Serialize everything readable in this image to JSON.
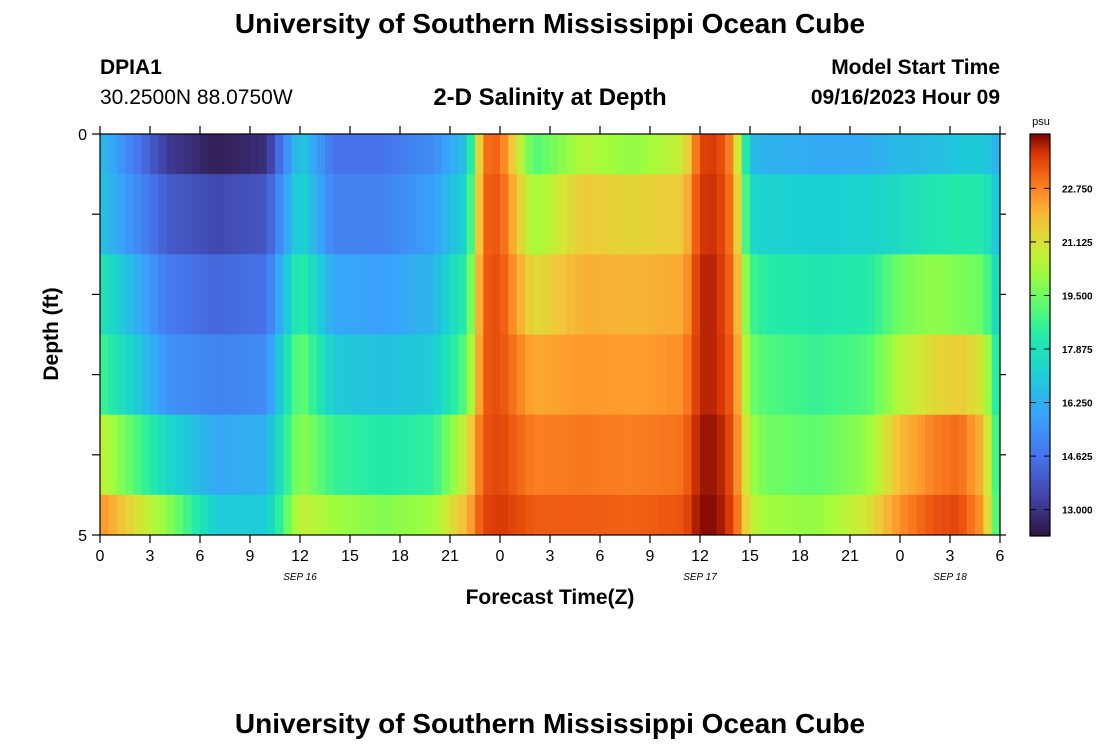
{
  "page": {
    "title": "University of Southern Mississippi Ocean Cube",
    "station": "DPIA1",
    "coords": "30.2500N  88.0750W",
    "plot_title": "2-D Salinity at Depth",
    "model_start_label": "Model Start Time",
    "model_start_value": "09/16/2023 Hour 09",
    "footer_title": "University of Southern Mississippi Ocean Cube"
  },
  "chart_data": {
    "type": "heatmap",
    "title": "2-D Salinity at Depth",
    "xlabel": "Forecast Time(Z)",
    "ylabel": "Depth (ft)",
    "x_tick_labels": [
      "0",
      "3",
      "6",
      "9",
      "12",
      "15",
      "18",
      "21",
      "0",
      "3",
      "6",
      "9",
      "12",
      "15",
      "18",
      "21",
      "0",
      "3",
      "6"
    ],
    "y_tick_labels": [
      "0",
      "5"
    ],
    "ylim": [
      0,
      5
    ],
    "date_labels": [
      {
        "text": "SEP 16",
        "tick_index": 4
      },
      {
        "text": "SEP 17",
        "tick_index": 12
      },
      {
        "text": "SEP 18",
        "tick_index": 17
      }
    ],
    "colorbar": {
      "unit": "psu",
      "min": 12.2,
      "max": 24.4,
      "ticks": [
        "22.750",
        "21.125",
        "19.500",
        "17.875",
        "16.250",
        "14.625",
        "13.000"
      ]
    },
    "layer_depths": [
      0,
      1,
      2,
      3,
      4,
      5
    ],
    "time_hours": [
      0,
      4,
      7,
      10,
      12,
      14,
      17,
      20,
      22,
      23,
      24,
      26,
      29,
      32,
      35,
      36,
      37,
      38,
      39,
      40,
      43,
      46,
      48,
      50,
      51.5,
      53,
      54
    ],
    "salinity": [
      [
        16.6,
        13.2,
        12.5,
        12.9,
        17.0,
        14.6,
        14.6,
        15.3,
        16.8,
        23.0,
        23.2,
        19.0,
        20.5,
        20.0,
        20.8,
        23.6,
        23.8,
        22.5,
        16.6,
        16.3,
        16.1,
        16.1,
        16.5,
        16.6,
        16.9,
        17.0,
        16.1
      ],
      [
        16.8,
        14.0,
        13.5,
        13.9,
        17.4,
        15.0,
        15.0,
        15.8,
        17.4,
        23.2,
        23.4,
        20.2,
        21.6,
        21.4,
        21.6,
        23.8,
        23.9,
        22.8,
        17.5,
        17.2,
        17.1,
        17.2,
        17.6,
        18.0,
        18.2,
        18.2,
        16.5
      ],
      [
        18.0,
        14.8,
        14.3,
        14.6,
        18.5,
        16.0,
        15.8,
        16.4,
        18.4,
        23.3,
        23.5,
        21.2,
        22.1,
        22.0,
        22.2,
        24.0,
        24.0,
        23.0,
        18.8,
        18.3,
        18.0,
        18.2,
        19.5,
        20.0,
        19.7,
        19.4,
        17.0
      ],
      [
        18.8,
        15.5,
        15.0,
        15.3,
        19.5,
        17.0,
        16.7,
        17.0,
        19.2,
        23.3,
        23.5,
        22.2,
        22.5,
        22.4,
        22.6,
        24.0,
        24.0,
        23.2,
        19.5,
        19.0,
        18.6,
        19.0,
        20.5,
        21.3,
        21.6,
        21.0,
        17.5
      ],
      [
        20.8,
        17.5,
        16.0,
        16.3,
        20.0,
        18.6,
        18.2,
        18.5,
        21.0,
        23.4,
        23.6,
        22.8,
        22.9,
        22.8,
        23.0,
        24.2,
        24.2,
        23.4,
        20.2,
        19.5,
        19.2,
        20.0,
        21.9,
        22.8,
        23.1,
        22.0,
        17.8
      ],
      [
        22.6,
        20.0,
        17.0,
        17.0,
        20.8,
        20.2,
        19.8,
        20.2,
        22.0,
        23.6,
        23.8,
        23.3,
        23.3,
        23.2,
        23.4,
        24.3,
        24.3,
        23.6,
        20.8,
        20.2,
        20.0,
        21.0,
        22.6,
        23.4,
        23.6,
        22.4,
        18.0
      ]
    ]
  }
}
